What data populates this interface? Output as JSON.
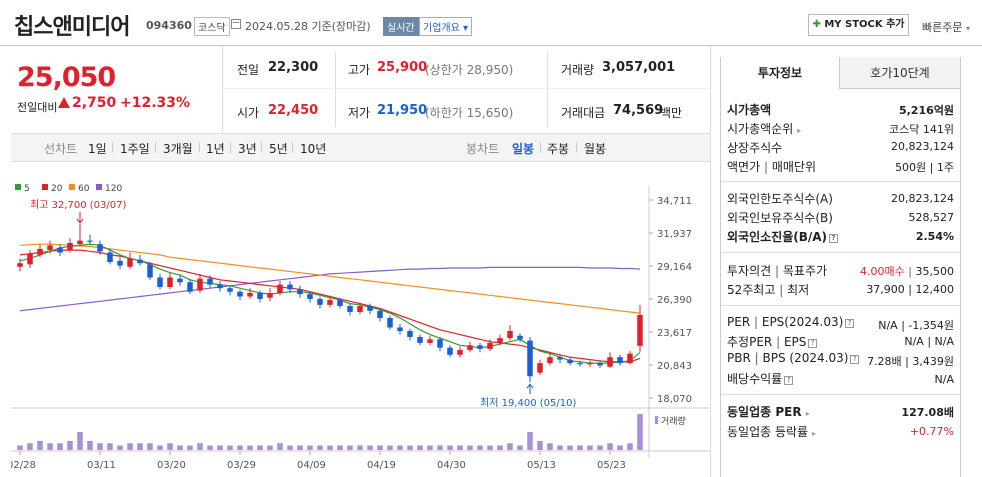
{
  "header": {
    "name": "칩스앤미디어",
    "code": "094360",
    "market": "코스닥",
    "date": "2024.05.28 기준(장마감)",
    "realtime": "실시간",
    "company_info": "기업개요",
    "mystock": "MY STOCK 추가",
    "quick_order": "빠른주문"
  },
  "price": {
    "current": "25,050",
    "change_label": "전일대비",
    "change": "2,750",
    "rate": "+12.33%"
  },
  "quote": {
    "prev_label": "전일",
    "prev": "22,300",
    "high_label": "고가",
    "high": "25,900",
    "upper": "(상한가 28,950)",
    "volume_label": "거래량",
    "volume": "3,057,001",
    "open_label": "시가",
    "open": "22,450",
    "low_label": "저가",
    "low": "21,950",
    "lower": "(하한가 15,650)",
    "amount_label": "거래대금",
    "amount": "74,569",
    "amount_unit": "백만"
  },
  "periods": {
    "line_label": "선차트",
    "items": [
      "1일",
      "1주일",
      "3개월",
      "1년",
      "3년",
      "5년",
      "10년"
    ],
    "candle_label": "봉차트",
    "candle_items": [
      "일봉",
      "주봉",
      "월봉"
    ]
  },
  "panel": {
    "tab_invest": "투자정보",
    "tab_hoga": "호가10단계",
    "market_cap_label": "시가총액",
    "market_cap": "5,216억원",
    "rank_label": "시가총액순위",
    "rank": "코스닥 141위",
    "shares_label": "상장주식수",
    "shares": "20,823,124",
    "par_label": "액면가",
    "unit_label": "매매단위",
    "par_unit": "500원 | 1주",
    "foreign_limit_label": "외국인한도주식수(A)",
    "foreign_limit": "20,823,124",
    "foreign_hold_label": "외국인보유주식수(B)",
    "foreign_hold": "528,527",
    "foreign_ratio_label": "외국인소진율(B/A)",
    "foreign_ratio": "2.54%",
    "opinion_label": "투자의견",
    "target_label": "목표주가",
    "opinion": "4.00매수",
    "target": "35,500",
    "w52_label": "52주최고",
    "w52_low_label": "최저",
    "w52": "37,900 | 12,400",
    "per_label": "PER",
    "eps_label": "EPS(2024.03)",
    "per_eps": "N/A | -1,354원",
    "est_label": "추정PER",
    "est_eps_label": "EPS",
    "est": "N/A | N/A",
    "pbr_label": "PBR",
    "bps_label": "BPS (2024.03)",
    "pbr_bps": "7.28배 | 3,439원",
    "div_label": "배당수익률",
    "div": "N/A",
    "sector_per_label": "동일업종 PER",
    "sector_per": "127.08배",
    "sector_rate_label": "동일업종 등락률",
    "sector_rate": "+0.77%"
  },
  "chart_data": {
    "type": "candlestick",
    "legend": [
      "5",
      "20",
      "60",
      "120"
    ],
    "legend_colors": [
      "#2ca02c",
      "#e0202c",
      "#f0901c",
      "#8a5cc8"
    ],
    "y_ticks": [
      "34,711",
      "31,937",
      "29,164",
      "26,390",
      "23,617",
      "20,843",
      "18,070"
    ],
    "ylim": [
      18070,
      34711
    ],
    "x_ticks": [
      "02/28",
      "03/11",
      "03/20",
      "03/29",
      "04/09",
      "04/19",
      "04/30",
      "05/13",
      "05/23"
    ],
    "high_annotation": "최고 32,700 (03/07)",
    "low_annotation": "최저 19,400 (05/10)",
    "volume_label": "거래량",
    "candles": [
      [
        29100,
        29400,
        29800,
        28700
      ],
      [
        29300,
        30200,
        30500,
        29000
      ],
      [
        30100,
        30600,
        31000,
        29900
      ],
      [
        30500,
        30900,
        31300,
        30200
      ],
      [
        30700,
        30300,
        31000,
        30000
      ],
      [
        30500,
        31100,
        31500,
        30300
      ],
      [
        31000,
        31300,
        32700,
        30800
      ],
      [
        31300,
        31200,
        31800,
        30900
      ],
      [
        31000,
        30400,
        31300,
        30100
      ],
      [
        30300,
        29500,
        30600,
        29300
      ],
      [
        29600,
        29200,
        29900,
        28900
      ],
      [
        29100,
        29800,
        30300,
        28900
      ],
      [
        29700,
        29400,
        30100,
        29200
      ],
      [
        29300,
        28200,
        29500,
        28000
      ],
      [
        28200,
        27400,
        28500,
        27200
      ],
      [
        27400,
        28200,
        28600,
        27200
      ],
      [
        28100,
        27800,
        28400,
        27500
      ],
      [
        27800,
        27000,
        28100,
        26800
      ],
      [
        27100,
        28100,
        28500,
        26900
      ],
      [
        28100,
        27600,
        28400,
        27300
      ],
      [
        27600,
        27300,
        27900,
        27000
      ],
      [
        27300,
        27000,
        27500,
        26700
      ],
      [
        27000,
        26600,
        27200,
        26300
      ],
      [
        26600,
        26900,
        27300,
        26400
      ],
      [
        26900,
        26400,
        27100,
        26100
      ],
      [
        26500,
        26900,
        27300,
        26200
      ],
      [
        26900,
        27600,
        27900,
        26700
      ],
      [
        27600,
        27200,
        27900,
        26900
      ],
      [
        27200,
        26800,
        27500,
        26500
      ],
      [
        26800,
        26400,
        27000,
        26100
      ],
      [
        26400,
        25900,
        26600,
        25600
      ],
      [
        25900,
        26300,
        26500,
        25700
      ],
      [
        26300,
        25800,
        26500,
        25600
      ],
      [
        25800,
        25300,
        26000,
        25000
      ],
      [
        25300,
        25800,
        26100,
        25100
      ],
      [
        25800,
        25400,
        26000,
        25100
      ],
      [
        25400,
        24800,
        25600,
        24500
      ],
      [
        24800,
        24000,
        25000,
        23800
      ],
      [
        24000,
        23700,
        24300,
        23400
      ],
      [
        23700,
        23200,
        23900,
        22900
      ],
      [
        23200,
        22700,
        23400,
        22500
      ],
      [
        22700,
        23000,
        23300,
        22500
      ],
      [
        23000,
        22300,
        23200,
        22000
      ],
      [
        22300,
        21700,
        22500,
        21500
      ],
      [
        21700,
        22100,
        22400,
        21500
      ],
      [
        22100,
        22500,
        22800,
        21900
      ],
      [
        22500,
        22200,
        22700,
        21900
      ],
      [
        22200,
        22700,
        23000,
        22000
      ],
      [
        22700,
        23100,
        23400,
        22500
      ],
      [
        23100,
        23700,
        24200,
        22900
      ],
      [
        23300,
        23000,
        23500,
        22800
      ],
      [
        22900,
        19900,
        23200,
        19400
      ],
      [
        20200,
        21000,
        21300,
        20000
      ],
      [
        21000,
        21500,
        21800,
        20800
      ],
      [
        21500,
        21300,
        21700,
        21000
      ],
      [
        21300,
        21000,
        21500,
        20800
      ],
      [
        21000,
        20900,
        21200,
        20700
      ],
      [
        20900,
        21000,
        21200,
        20700
      ],
      [
        21000,
        20800,
        21200,
        20600
      ],
      [
        20700,
        21500,
        21900,
        20600
      ],
      [
        21500,
        21000,
        21700,
        20800
      ],
      [
        21000,
        21800,
        22000,
        20900
      ],
      [
        22450,
        25050,
        25900,
        21950
      ]
    ],
    "volumes": [
      2,
      3,
      4,
      3,
      3,
      4,
      8,
      4,
      3,
      3,
      2,
      3,
      3,
      3,
      2,
      3,
      2,
      2,
      3,
      2,
      2,
      2,
      2,
      2,
      2,
      2,
      3,
      2,
      2,
      2,
      2,
      2,
      2,
      2,
      2,
      2,
      2,
      2,
      2,
      2,
      2,
      2,
      2,
      2,
      2,
      2,
      2,
      2,
      2,
      3,
      2,
      8,
      4,
      3,
      2,
      2,
      2,
      2,
      2,
      3,
      2,
      3,
      16
    ],
    "ma5": [
      29600,
      29800,
      30100,
      30400,
      30700,
      30800,
      30900,
      31000,
      30900,
      30500,
      30100,
      29800,
      29600,
      29300,
      28900,
      28600,
      28400,
      28000,
      27800,
      27700,
      27600,
      27500,
      27300,
      27100,
      26900,
      26800,
      26900,
      27000,
      27000,
      26900,
      26700,
      26500,
      26300,
      26000,
      25900,
      25700,
      25500,
      25200,
      24800,
      24300,
      23800,
      23400,
      23100,
      22800,
      22500,
      22400,
      22300,
      22400,
      22600,
      22800,
      23000,
      22500,
      22000,
      21800,
      21500,
      21200,
      21100,
      21000,
      21000,
      21000,
      21100,
      21200,
      21900
    ],
    "ma20": [
      30100,
      30200,
      30300,
      30400,
      30500,
      30500,
      30500,
      30400,
      30300,
      30100,
      30000,
      29800,
      29600,
      29400,
      29200,
      29000,
      28800,
      28600,
      28400,
      28200,
      28000,
      27900,
      27800,
      27700,
      27600,
      27500,
      27400,
      27300,
      27200,
      27000,
      26800,
      26600,
      26400,
      26200,
      26000,
      25800,
      25600,
      25300,
      25000,
      24700,
      24400,
      24100,
      23800,
      23600,
      23400,
      23200,
      23000,
      22800,
      22700,
      22600,
      22500,
      22300,
      22100,
      21900,
      21700,
      21500,
      21400,
      21300,
      21200,
      21100,
      21100,
      21100,
      21400
    ],
    "ma60": [
      30900,
      30950,
      31000,
      31000,
      30950,
      30900,
      30850,
      30800,
      30700,
      30600,
      30500,
      30400,
      30300,
      30200,
      30100,
      29900,
      29800,
      29700,
      29600,
      29500,
      29400,
      29300,
      29200,
      29100,
      29000,
      28900,
      28800,
      28700,
      28600,
      28500,
      28400,
      28300,
      28200,
      28100,
      28000,
      27900,
      27800,
      27700,
      27600,
      27500,
      27400,
      27300,
      27200,
      27100,
      27000,
      26900,
      26800,
      26700,
      26600,
      26500,
      26400,
      26300,
      26200,
      26100,
      26000,
      25900,
      25800,
      25700,
      25600,
      25500,
      25400,
      25300,
      25200
    ],
    "ma120": [
      25400,
      25500,
      25600,
      25700,
      25800,
      25900,
      26000,
      26100,
      26200,
      26300,
      26400,
      26500,
      26600,
      26700,
      26800,
      26900,
      27000,
      27100,
      27200,
      27300,
      27400,
      27500,
      27600,
      27700,
      27800,
      27900,
      28000,
      28100,
      28200,
      28300,
      28400,
      28500,
      28550,
      28600,
      28650,
      28700,
      28750,
      28800,
      28850,
      28900,
      28900,
      28950,
      28950,
      29000,
      29000,
      29000,
      29000,
      29050,
      29050,
      29050,
      29050,
      29050,
      29050,
      29050,
      29050,
      29050,
      29050,
      29000,
      29000,
      29000,
      28950,
      28950,
      28900
    ]
  }
}
